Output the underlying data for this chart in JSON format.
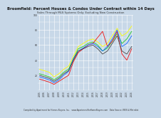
{
  "title": "Broomfield: Percent Houses & Condos Under Contract within 14 Days",
  "subtitle": "Sales Through MLS Systems Only: Excluding New Construction",
  "background_color": "#c8d8e8",
  "plot_bg_color": "#c8d8e8",
  "grid_color": "#ffffff",
  "ylim": [
    0,
    100
  ],
  "yticks": [
    20,
    40,
    60,
    80,
    100
  ],
  "years": [
    "2005",
    "2006",
    "2007",
    "2008",
    "2009",
    "2010",
    "2011",
    "2012",
    "2013",
    "2014",
    "2015",
    "2016",
    "2017",
    "2018",
    "2019",
    "2020",
    "2021",
    "2022",
    "2023",
    "2024"
  ],
  "lines": {
    "yellow": {
      "color": "#ffff00",
      "values": [
        28,
        26,
        24,
        18,
        22,
        28,
        32,
        45,
        58,
        62,
        66,
        68,
        64,
        58,
        62,
        72,
        82,
        72,
        76,
        85
      ]
    },
    "green": {
      "color": "#22cc22",
      "values": [
        22,
        20,
        18,
        14,
        18,
        24,
        28,
        42,
        55,
        58,
        62,
        64,
        60,
        52,
        56,
        65,
        75,
        62,
        68,
        78
      ]
    },
    "red": {
      "color": "#ee1111",
      "values": [
        15,
        13,
        11,
        8,
        12,
        16,
        20,
        38,
        50,
        55,
        60,
        62,
        70,
        78,
        58,
        65,
        78,
        48,
        40,
        55
      ]
    },
    "blue": {
      "color": "#1166ff",
      "values": [
        18,
        16,
        14,
        10,
        14,
        20,
        25,
        42,
        52,
        56,
        60,
        62,
        58,
        52,
        58,
        68,
        80,
        58,
        62,
        72
      ]
    },
    "dark": {
      "color": "#444444",
      "values": [
        20,
        18,
        16,
        12,
        16,
        22,
        26,
        40,
        52,
        55,
        58,
        60,
        55,
        48,
        52,
        62,
        72,
        52,
        48,
        58
      ]
    }
  },
  "footer": "Compiled by Apartment for Homes Buyers, Inc.   www.ApartmentForHomeBuyers.com   Data Source: IRES & Metrolist",
  "title_fontsize": 3.8,
  "subtitle_fontsize": 2.8,
  "label_fontsize": 2.2,
  "footer_fontsize": 2.0
}
